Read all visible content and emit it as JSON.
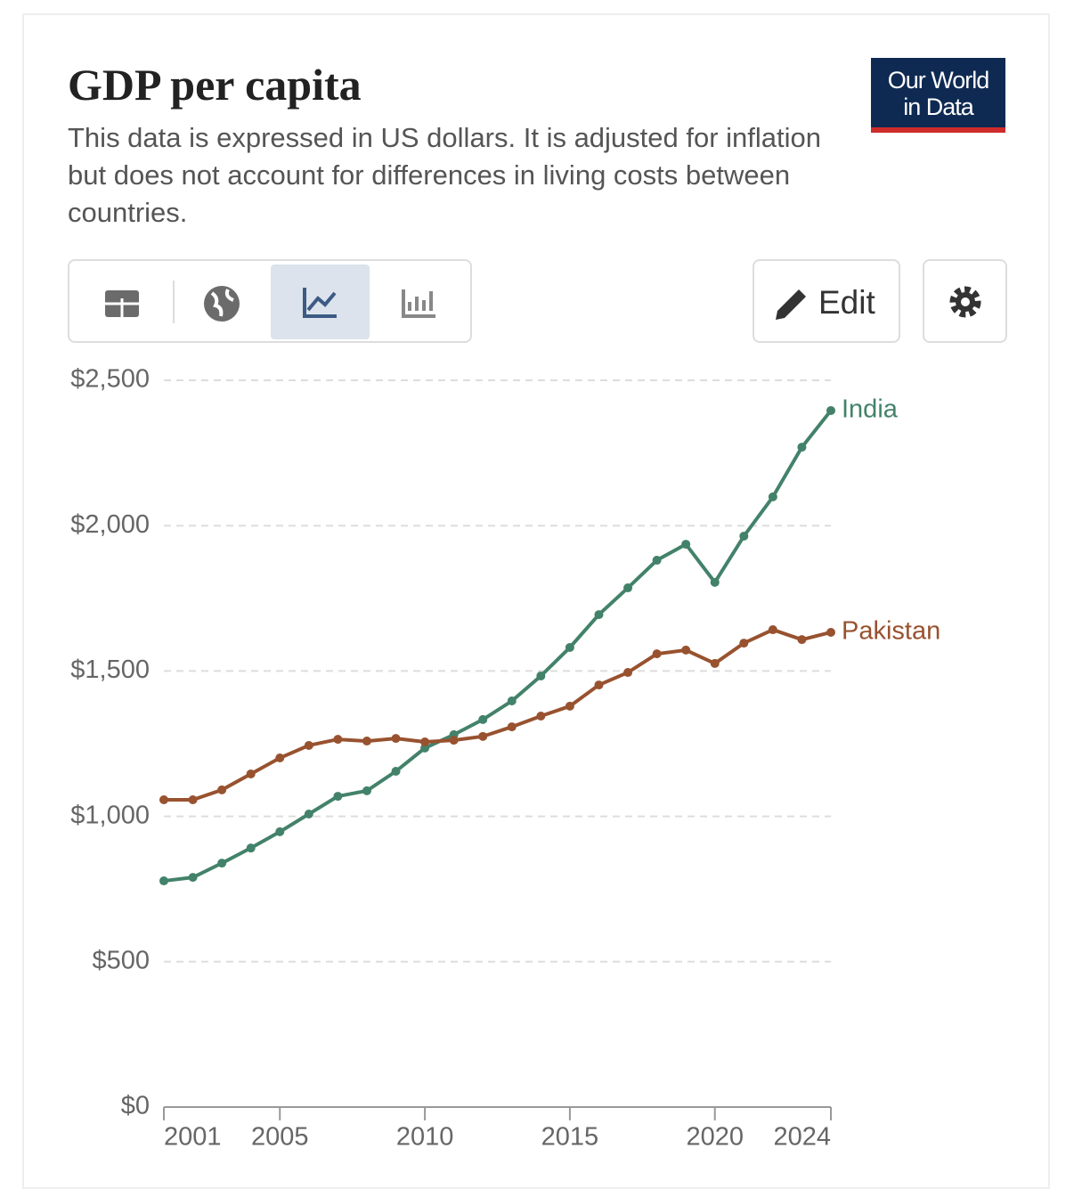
{
  "header": {
    "title": "GDP per capita",
    "subtitle": "This data is expressed in US dollars. It is adjusted for inflation but does not account for differences in living costs between countries.",
    "logo": [
      "Our World",
      "in Data"
    ]
  },
  "toolbar": {
    "edit": "Edit"
  },
  "chart_data": {
    "type": "line",
    "x": [
      2001,
      2002,
      2003,
      2004,
      2005,
      2006,
      2007,
      2008,
      2009,
      2010,
      2011,
      2012,
      2013,
      2014,
      2015,
      2016,
      2017,
      2018,
      2019,
      2020,
      2021,
      2022,
      2023,
      2024
    ],
    "series": [
      {
        "name": "India",
        "color": "#43826a",
        "values": [
          778,
          790,
          839,
          891,
          947,
          1008,
          1069,
          1088,
          1155,
          1235,
          1281,
          1333,
          1397,
          1483,
          1581,
          1694,
          1786,
          1881,
          1936,
          1805,
          1964,
          2099,
          2270,
          2396
        ]
      },
      {
        "name": "Pakistan",
        "color": "#98522f",
        "values": [
          1057,
          1057,
          1091,
          1146,
          1201,
          1244,
          1265,
          1259,
          1268,
          1256,
          1262,
          1275,
          1308,
          1345,
          1379,
          1452,
          1495,
          1559,
          1572,
          1526,
          1596,
          1642,
          1608,
          1633
        ]
      }
    ],
    "xlim": [
      2001,
      2024
    ],
    "xticks": [
      2001,
      2005,
      2010,
      2015,
      2020,
      2024
    ],
    "ylim": [
      0,
      2500
    ],
    "yticks": [
      {
        "value": 0,
        "label": "$0"
      },
      {
        "value": 500,
        "label": "$500"
      },
      {
        "value": 1000,
        "label": "$1,000"
      },
      {
        "value": 1500,
        "label": "$1,500"
      },
      {
        "value": 2000,
        "label": "$2,000"
      },
      {
        "value": 2500,
        "label": "$2,500"
      }
    ],
    "grid": true
  }
}
